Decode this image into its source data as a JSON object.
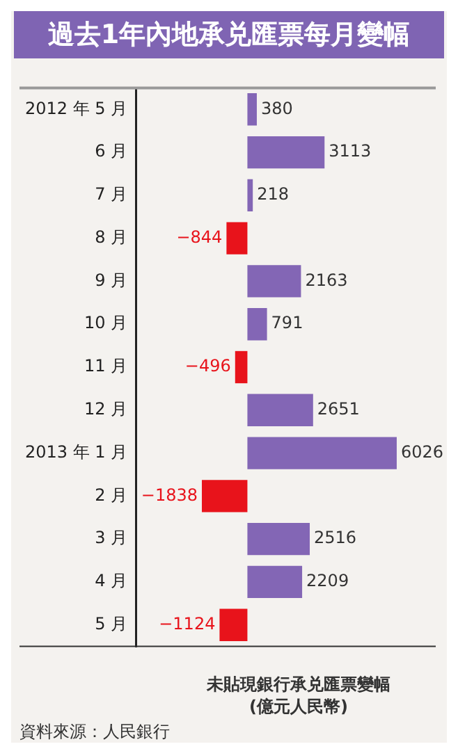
{
  "chart_data": {
    "type": "bar",
    "orientation": "horizontal",
    "title": "過去1年內地承兑匯票每月變幅",
    "categories": [
      "2012 年 5 月",
      "6 月",
      "7 月",
      "8 月",
      "9 月",
      "10 月",
      "11 月",
      "12 月",
      "2013 年 1 月",
      "2 月",
      "3 月",
      "4 月",
      "5 月"
    ],
    "values": [
      380,
      3113,
      218,
      -844,
      2163,
      791,
      -496,
      2651,
      6026,
      -1838,
      2516,
      2209,
      -1124
    ],
    "colors": [
      "#8366b5",
      "#8366b5",
      "#8366b5",
      "#e8131b",
      "#8366b5",
      "#8366b5",
      "#e8131b",
      "#8366b5",
      "#8366b5",
      "#e8131b",
      "#8366b5",
      "#8366b5",
      "#e8131b"
    ],
    "xlim": [
      -4500,
      7600
    ],
    "data_labels": true,
    "legend": false,
    "tick_labels": "y",
    "xlabel": "未貼現銀行承兑匯票變幅\n(億元人民幣)",
    "annotations": [
      "資料來源：人民銀行"
    ]
  }
}
